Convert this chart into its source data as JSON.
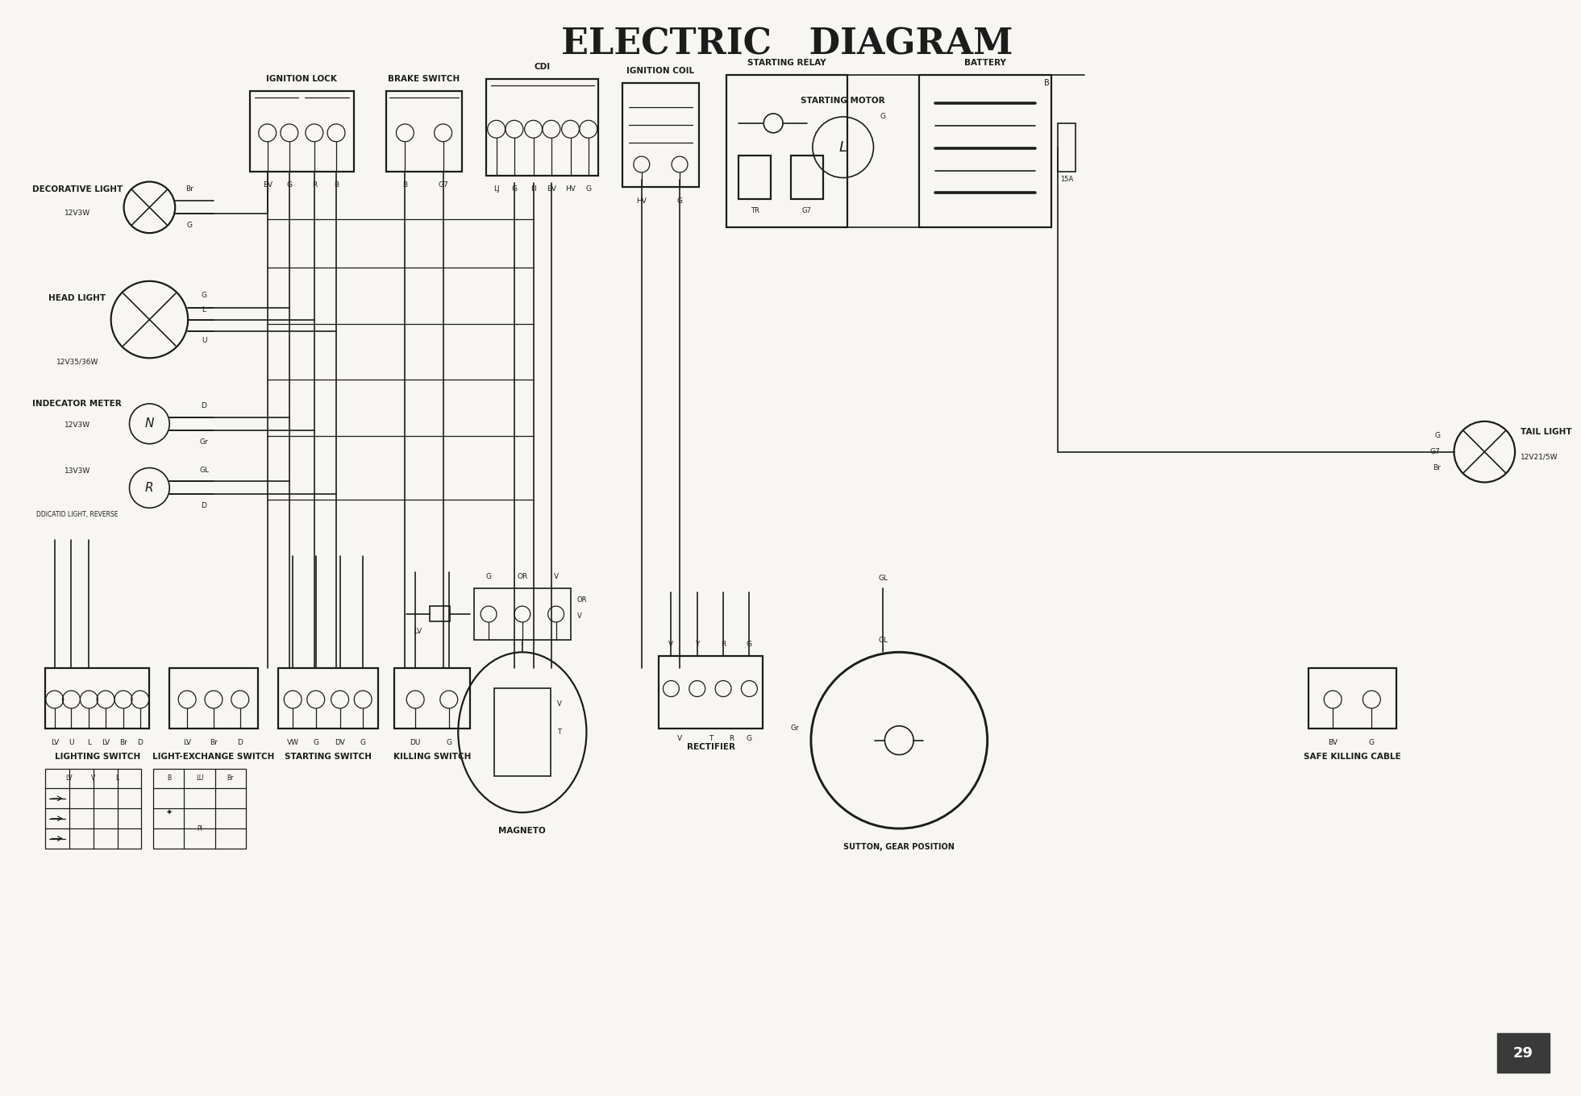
{
  "title": "ELECTRIC   DIAGRAM",
  "bg_color": "#f8f6f2",
  "line_color": "#1c1c1c",
  "title_fontsize": 32,
  "page_number": "29",
  "fig_w": 19.61,
  "fig_h": 13.6,
  "components": {
    "ignition_lock_label": "IGNITION LOCK",
    "brake_switch_label": "BRAKE SWITCH",
    "cdi_label": "CDI",
    "ignition_coil_label": "IGNITION COIL",
    "starting_relay_label": "STARTING RELAY",
    "battery_label": "BATTERY",
    "starting_motor_label": "STARTING MOTOR",
    "decorative_light_label": "DECORATIVE LIGHT",
    "head_light_label": "HEAD LIGHT",
    "indecator_meter_label": "INDECATOR METER",
    "tail_light_label": "TAIL LIGHT",
    "magneto_label": "MAGNETO",
    "rectifier_label": "RECTIFIER",
    "sutton_label": "SUTTON, GEAR POSITION",
    "safe_killing_label": "SAFE KILLING CABLE",
    "lighting_switch_label": "LIGHTING SWITCH",
    "light_exchange_label": "LIGHT-EXCHANGE SWITCH",
    "starting_switch_label": "STARTING SWITCH",
    "killing_switch_label": "KILLING SWITCH",
    "decorative_spec": "12V3W",
    "headlight_spec": "12V35/36W",
    "indicator1_spec": "12V3W",
    "indicator2_spec": "13V3W",
    "indicator2_sub": "DDICATID LIGHT, REVERSE",
    "taillight_spec": "12V21/5W",
    "fuse_label": "15A"
  },
  "colors": {
    "pin_wire": "#1c1c1c",
    "page_bg": "#3a3a3a",
    "page_text": "#ffffff"
  }
}
